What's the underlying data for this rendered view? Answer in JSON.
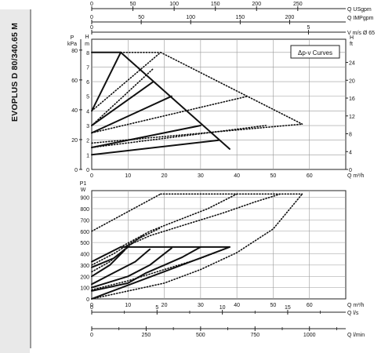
{
  "side_title": "EVOPLUS D 80/340.65 M",
  "legend_label": "Δp-v Curves",
  "colors": {
    "curve": "#111111",
    "grid": "#9a9a9a",
    "tab_bg": "#e9e9e9"
  },
  "top_axes": [
    {
      "label": "Q USgpm",
      "ticks": [
        "0",
        "50",
        "100",
        "150",
        "200",
        "250"
      ],
      "values": [
        0,
        50,
        100,
        150,
        200,
        250
      ]
    },
    {
      "label": "Q IMPgpm",
      "ticks": [
        "0",
        "50",
        "100",
        "150",
        "200"
      ],
      "values": [
        0,
        50,
        100,
        150,
        200
      ]
    },
    {
      "label": "V m/s Ø 65",
      "ticks": [
        "0",
        "5"
      ],
      "values": [
        0,
        5
      ]
    }
  ],
  "bottom_axes": [
    {
      "label": "Q m³/h",
      "ticks": [
        "0",
        "10",
        "20",
        "30",
        "40",
        "50",
        "60"
      ],
      "values": [
        0,
        10,
        20,
        30,
        40,
        50,
        60
      ]
    },
    {
      "label": "Q l/s",
      "ticks": [
        "0",
        "5",
        "10",
        "15"
      ],
      "values": [
        0,
        5,
        10,
        15
      ]
    },
    {
      "label": "Q l/min",
      "ticks": [
        "0",
        "250",
        "500",
        "750",
        "1000"
      ],
      "values": [
        0,
        250,
        500,
        750,
        1000
      ]
    }
  ],
  "chart_data": [
    {
      "type": "line",
      "panel": "head",
      "xlabel": "Q m³/h",
      "xlim": [
        0,
        70
      ],
      "xticks": [
        "0",
        "10",
        "20",
        "30",
        "40",
        "50",
        "60"
      ],
      "ylabel_left_unit": "P",
      "ylabel_left": "kPa",
      "yticks_left": [
        "0",
        "20",
        "40",
        "60",
        "80"
      ],
      "ylabel_mid_unit": "H",
      "ylabel_mid": "m",
      "ylim": [
        0,
        8.9
      ],
      "yticks_mid": [
        "0",
        "1",
        "2",
        "3",
        "4",
        "5",
        "6",
        "7",
        "8"
      ],
      "ylabel_right_unit": "H",
      "ylabel_right": "ft",
      "yticks_right": [
        "0",
        "4",
        "8",
        "12",
        "16",
        "20",
        "24"
      ],
      "grid": true,
      "series": [
        {
          "style": "solid",
          "x": [
            0,
            8
          ],
          "y": [
            8,
            8
          ]
        },
        {
          "style": "solid",
          "x": [
            8,
            38
          ],
          "y": [
            8,
            1.4
          ]
        },
        {
          "style": "solid",
          "x": [
            0,
            8
          ],
          "y": [
            4,
            8
          ]
        },
        {
          "style": "solid",
          "x": [
            0,
            17
          ],
          "y": [
            3,
            6
          ]
        },
        {
          "style": "solid",
          "x": [
            0,
            22
          ],
          "y": [
            2.5,
            5
          ]
        },
        {
          "style": "solid",
          "x": [
            0,
            30
          ],
          "y": [
            1.5,
            3
          ]
        },
        {
          "style": "solid",
          "x": [
            0,
            35
          ],
          "y": [
            1,
            2
          ]
        },
        {
          "style": "dotted",
          "x": [
            8,
            19
          ],
          "y": [
            8,
            8
          ]
        },
        {
          "style": "dotted",
          "x": [
            0,
            19
          ],
          "y": [
            4,
            8
          ]
        },
        {
          "style": "dotted",
          "x": [
            19,
            58
          ],
          "y": [
            8,
            3.1
          ]
        },
        {
          "style": "dotted",
          "x": [
            0,
            17
          ],
          "y": [
            3,
            6.9
          ]
        },
        {
          "style": "dotted",
          "x": [
            0,
            43
          ],
          "y": [
            2.5,
            5
          ]
        },
        {
          "style": "dotted",
          "x": [
            0,
            48
          ],
          "y": [
            1.5,
            3
          ]
        },
        {
          "style": "dotted",
          "x": [
            0,
            58
          ],
          "y": [
            1.8,
            3.1
          ]
        }
      ]
    },
    {
      "type": "line",
      "panel": "power",
      "xlabel": "Q m³/h",
      "xlim": [
        0,
        70
      ],
      "xticks": [
        "0",
        "10",
        "20",
        "30",
        "40",
        "50",
        "60"
      ],
      "ylabel_unit": "P1",
      "ylabel": "W",
      "ylim": [
        0,
        960
      ],
      "yticks": [
        "0",
        "100",
        "200",
        "300",
        "400",
        "500",
        "600",
        "700",
        "800",
        "900"
      ],
      "grid": true,
      "series": [
        {
          "style": "solid",
          "x": [
            0,
            8
          ],
          "y": [
            330,
            460
          ]
        },
        {
          "style": "solid",
          "x": [
            8,
            38
          ],
          "y": [
            460,
            460
          ]
        },
        {
          "style": "solid",
          "x": [
            0,
            38
          ],
          "y": [
            0,
            460
          ]
        },
        {
          "style": "solid",
          "x": [
            0,
            10,
            15,
            20,
            25,
            30
          ],
          "y": [
            70,
            140,
            230,
            300,
            370,
            460
          ]
        },
        {
          "style": "solid",
          "x": [
            0,
            10,
            16,
            22
          ],
          "y": [
            100,
            200,
            300,
            450
          ]
        },
        {
          "style": "solid",
          "x": [
            0,
            6,
            12,
            16
          ],
          "y": [
            130,
            230,
            330,
            440
          ]
        },
        {
          "style": "solid",
          "x": [
            0,
            5,
            9
          ],
          "y": [
            200,
            300,
            430
          ]
        },
        {
          "style": "solid",
          "x": [
            0,
            6,
            10
          ],
          "y": [
            280,
            360,
            460
          ]
        },
        {
          "style": "dotted",
          "x": [
            0,
            19
          ],
          "y": [
            600,
            930
          ]
        },
        {
          "style": "dotted",
          "x": [
            19,
            58
          ],
          "y": [
            930,
            930
          ]
        },
        {
          "style": "dotted",
          "x": [
            0,
            20,
            30,
            40,
            50,
            58
          ],
          "y": [
            0,
            140,
            260,
            410,
            620,
            930
          ]
        },
        {
          "style": "dotted",
          "x": [
            0,
            10,
            20,
            30,
            38
          ],
          "y": [
            80,
            160,
            260,
            360,
            460
          ]
        },
        {
          "style": "dotted",
          "x": [
            9,
            16,
            26,
            36,
            45,
            52
          ],
          "y": [
            460,
            560,
            660,
            760,
            860,
            930
          ]
        },
        {
          "style": "dotted",
          "x": [
            8,
            16,
            24,
            32,
            40
          ],
          "y": [
            460,
            600,
            700,
            800,
            930
          ]
        },
        {
          "style": "dotted",
          "x": [
            0,
            5,
            9,
            14
          ],
          "y": [
            240,
            330,
            440,
            560
          ]
        },
        {
          "style": "dotted",
          "x": [
            0,
            6,
            12,
            19
          ],
          "y": [
            300,
            400,
            520,
            630
          ]
        }
      ]
    }
  ]
}
